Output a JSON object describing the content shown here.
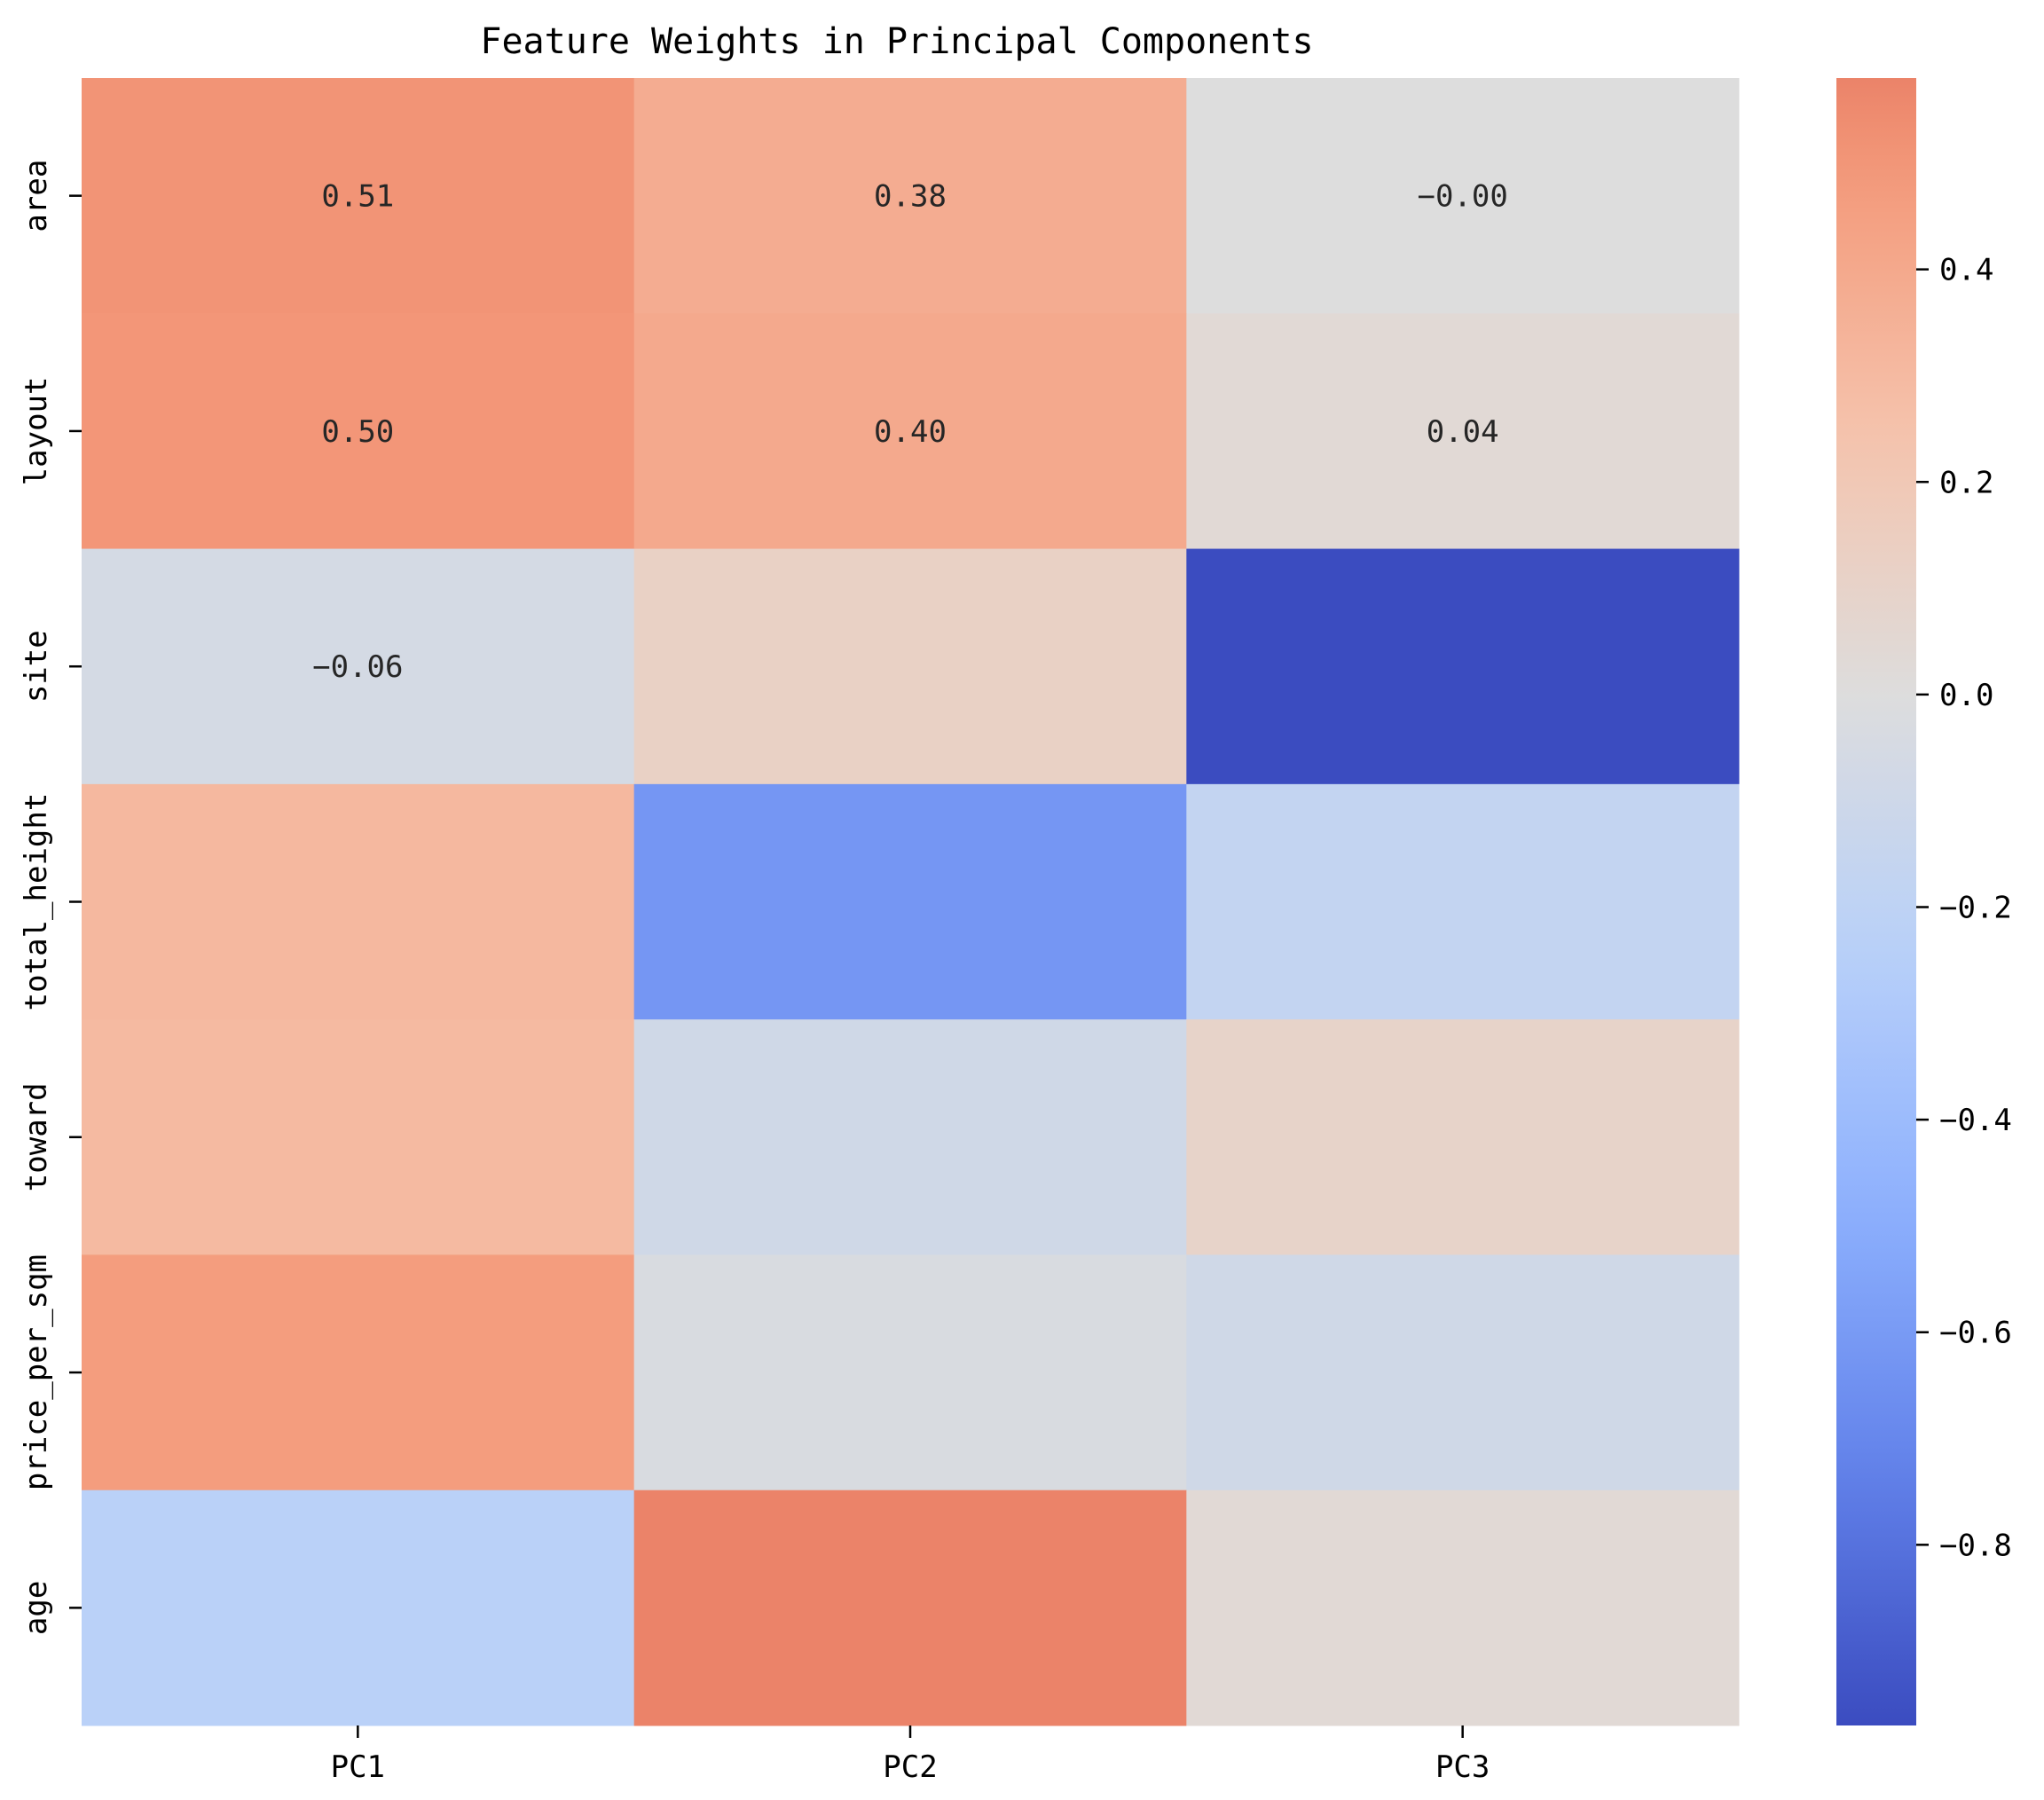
{
  "chart_data": {
    "type": "heatmap",
    "title": "Feature Weights in Principal Components",
    "xlabel": "",
    "ylabel": "",
    "columns": [
      "PC1",
      "PC2",
      "PC3"
    ],
    "rows": [
      "area",
      "layout",
      "site",
      "total_height",
      "toward",
      "price_per_sqm",
      "age"
    ],
    "values": [
      [
        0.51,
        0.38,
        -0.0
      ],
      [
        0.5,
        0.4,
        0.04
      ],
      [
        -0.06,
        0.12,
        -0.97
      ],
      [
        0.31,
        -0.62,
        -0.17
      ],
      [
        0.3,
        -0.09,
        0.1
      ],
      [
        0.47,
        -0.03,
        -0.09
      ],
      [
        -0.23,
        0.58,
        0.04
      ]
    ],
    "annotations": [
      [
        "0.51",
        "0.38",
        "−0.00"
      ],
      [
        "0.50",
        "0.40",
        "0.04"
      ],
      [
        "−0.06",
        "",
        ""
      ],
      [
        "",
        "",
        ""
      ],
      [
        "",
        "",
        ""
      ],
      [
        "",
        "",
        ""
      ],
      [
        "",
        "",
        ""
      ]
    ],
    "colormap": "coolwarm",
    "colorbar": {
      "vmin": -0.97,
      "vmax": 0.58,
      "ticks": [
        0.4,
        0.2,
        0.0,
        -0.2,
        -0.4,
        -0.6,
        -0.8
      ],
      "tick_labels": [
        "0.4",
        "0.2",
        "0.0",
        "−0.2",
        "−0.4",
        "−0.6",
        "−0.8"
      ]
    },
    "grid": false
  }
}
